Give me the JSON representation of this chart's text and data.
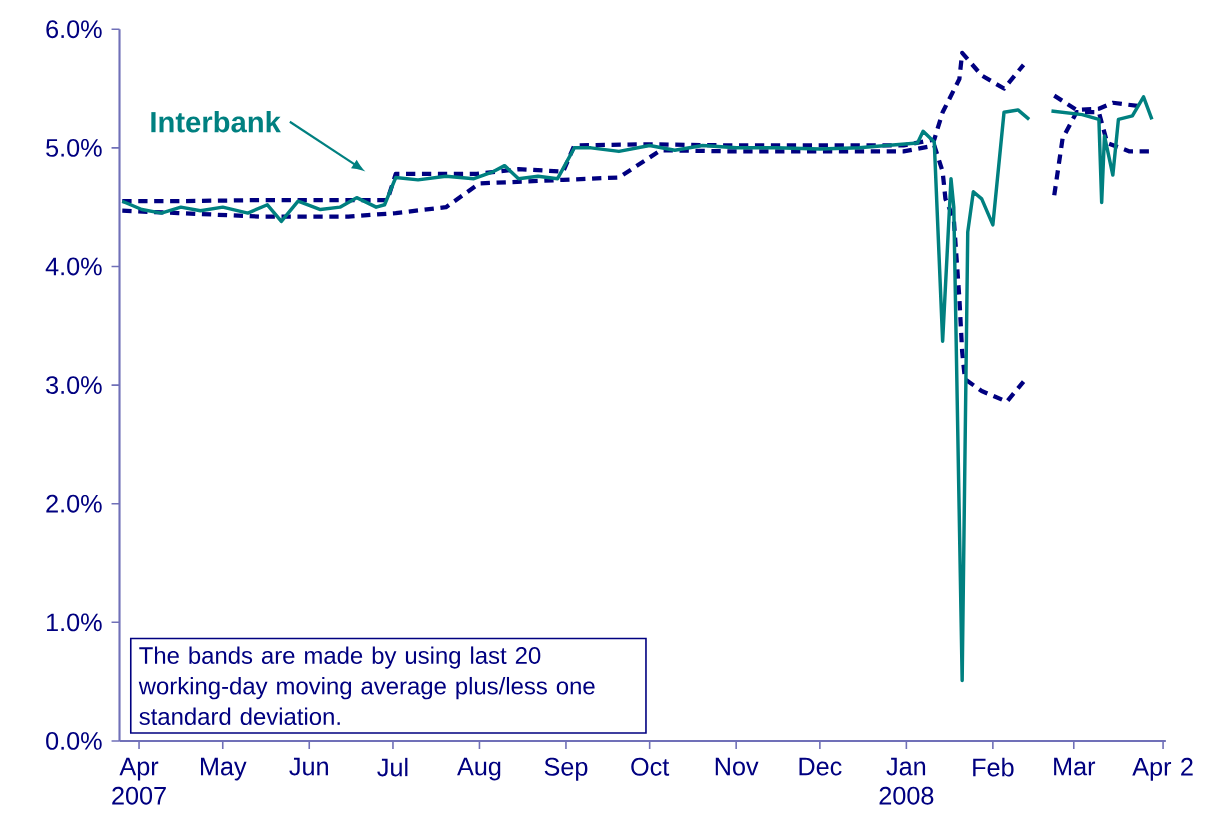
{
  "chart_data": {
    "type": "line",
    "xlim": [
      "2007-03-25",
      "2008-04-03"
    ],
    "xticks": [
      {
        "value": "2007-04-01",
        "label": "Apr 2007"
      },
      {
        "value": "2007-05-01",
        "label": "May"
      },
      {
        "value": "2007-06-01",
        "label": "Jun"
      },
      {
        "value": "2007-07-01",
        "label": "Jul"
      },
      {
        "value": "2007-08-01",
        "label": "Aug"
      },
      {
        "value": "2007-09-01",
        "label": "Sep"
      },
      {
        "value": "2007-10-01",
        "label": "Oct"
      },
      {
        "value": "2007-11-01",
        "label": "Nov"
      },
      {
        "value": "2007-12-01",
        "label": "Dec"
      },
      {
        "value": "2008-01-01",
        "label": "Jan 2008"
      },
      {
        "value": "2008-02-01",
        "label": "Feb"
      },
      {
        "value": "2008-03-01",
        "label": "Mar"
      },
      {
        "value": "2008-04-02",
        "label": "Apr 2"
      }
    ],
    "ylim": [
      0,
      6
    ],
    "yticks": [
      {
        "value": 0,
        "label": "0.0%"
      },
      {
        "value": 1,
        "label": "1.0%"
      },
      {
        "value": 2,
        "label": "2.0%"
      },
      {
        "value": 3,
        "label": "3.0%"
      },
      {
        "value": 4,
        "label": "4.0%"
      },
      {
        "value": 5,
        "label": "5.0%"
      },
      {
        "value": 6,
        "label": "6.0%"
      }
    ],
    "grid": false,
    "legend": false,
    "marker": "none",
    "annotations": [
      "The bands are made by using last 20 working-day moving average plus/less one standard deviation."
    ],
    "series": [
      {
        "color": "#000080",
        "line_style": "dashed",
        "x": [
          "2007-03-26",
          "2007-04-15",
          "2007-05-15",
          "2007-06-15",
          "2007-06-29",
          "2007-07-02",
          "2007-07-31",
          "2007-08-15",
          "2007-08-31",
          "2007-09-04",
          "2007-09-30",
          "2007-10-31",
          "2007-11-30",
          "2007-12-31",
          "2008-01-11",
          "2008-01-14",
          "2008-01-20",
          "2008-01-21",
          "2008-01-28",
          "2008-02-05",
          "2008-02-12",
          "2008-02-18",
          "2008-02-23",
          "2008-03-02",
          "2008-03-10",
          "2008-03-15",
          "2008-03-25"
        ],
        "values": [
          4.55,
          4.55,
          4.56,
          4.56,
          4.56,
          4.78,
          4.78,
          4.82,
          4.8,
          5.02,
          5.03,
          5.02,
          5.02,
          5.02,
          5.07,
          5.3,
          5.58,
          5.8,
          5.61,
          5.5,
          5.7,
          null,
          5.44,
          5.32,
          5.33,
          5.38,
          5.35
        ]
      },
      {
        "color": "#000080",
        "line_style": "dashed",
        "x": [
          "2007-03-26",
          "2007-04-15",
          "2007-05-15",
          "2007-06-15",
          "2007-07-02",
          "2007-07-20",
          "2007-08-01",
          "2007-08-31",
          "2007-09-20",
          "2007-10-05",
          "2007-10-31",
          "2007-11-30",
          "2007-12-31",
          "2008-01-11",
          "2008-01-14",
          "2008-01-15",
          "2008-01-18",
          "2008-01-20",
          "2008-01-21",
          "2008-01-22",
          "2008-01-28",
          "2008-02-06",
          "2008-02-12",
          "2008-02-18",
          "2008-02-23",
          "2008-02-26",
          "2008-03-02",
          "2008-03-10",
          "2008-03-13",
          "2008-03-21",
          "2008-03-29"
        ],
        "values": [
          4.47,
          4.45,
          4.42,
          4.42,
          4.45,
          4.5,
          4.7,
          4.73,
          4.75,
          4.98,
          4.97,
          4.97,
          4.97,
          5.02,
          4.8,
          4.57,
          4.4,
          3.73,
          3.28,
          3.05,
          2.95,
          2.86,
          3.03,
          null,
          4.6,
          5.08,
          5.3,
          5.3,
          5.04,
          4.97,
          4.97
        ]
      },
      {
        "name": "Interbank",
        "color": "#008080",
        "line_style": "solid",
        "x": [
          "2007-03-26",
          "2007-04-02",
          "2007-04-09",
          "2007-04-16",
          "2007-04-23",
          "2007-05-01",
          "2007-05-10",
          "2007-05-17",
          "2007-05-22",
          "2007-05-28",
          "2007-06-05",
          "2007-06-12",
          "2007-06-18",
          "2007-06-25",
          "2007-06-28",
          "2007-07-02",
          "2007-07-10",
          "2007-07-20",
          "2007-07-30",
          "2007-08-06",
          "2007-08-10",
          "2007-08-15",
          "2007-08-22",
          "2007-08-29",
          "2007-09-04",
          "2007-09-10",
          "2007-09-20",
          "2007-10-01",
          "2007-10-10",
          "2007-10-20",
          "2007-11-01",
          "2007-11-15",
          "2007-12-01",
          "2007-12-15",
          "2008-01-05",
          "2008-01-07",
          "2008-01-11",
          "2008-01-14",
          "2008-01-17",
          "2008-01-18",
          "2008-01-21",
          "2008-01-23",
          "2008-01-25",
          "2008-01-28",
          "2008-02-01",
          "2008-02-05",
          "2008-02-10",
          "2008-02-14",
          "2008-02-18",
          "2008-02-22",
          "2008-03-04",
          "2008-03-10",
          "2008-03-11",
          "2008-03-12",
          "2008-03-15",
          "2008-03-17",
          "2008-03-22",
          "2008-03-26",
          "2008-03-29"
        ],
        "values": [
          4.55,
          4.48,
          4.45,
          4.5,
          4.47,
          4.5,
          4.45,
          4.52,
          4.38,
          4.55,
          4.48,
          4.5,
          4.58,
          4.5,
          4.52,
          4.75,
          4.73,
          4.76,
          4.74,
          4.8,
          4.85,
          4.74,
          4.76,
          4.74,
          5.0,
          5.0,
          4.97,
          5.02,
          4.98,
          5.02,
          5.0,
          5.0,
          4.99,
          5.0,
          5.04,
          5.14,
          5.05,
          3.37,
          4.74,
          4.5,
          0.51,
          4.29,
          4.63,
          4.57,
          4.35,
          5.3,
          5.32,
          5.24,
          null,
          5.31,
          5.28,
          5.24,
          4.54,
          5.1,
          4.77,
          5.24,
          5.27,
          5.43,
          5.24
        ]
      }
    ]
  }
}
